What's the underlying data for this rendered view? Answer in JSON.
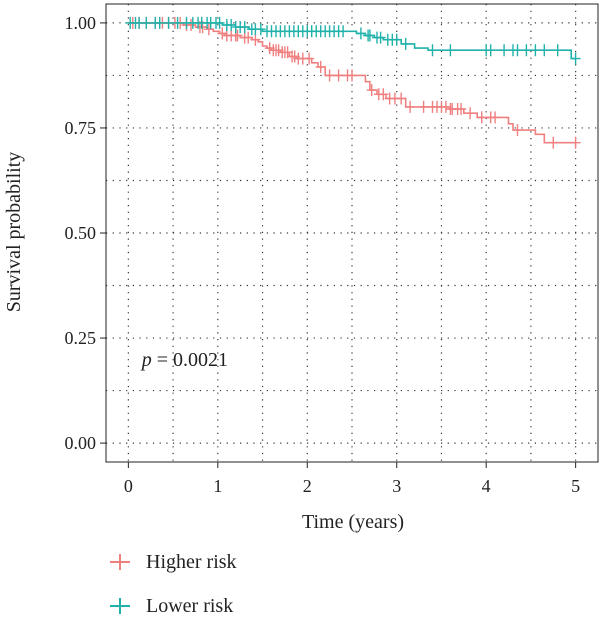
{
  "chart_data": {
    "type": "line",
    "xlabel": "Time (years)",
    "ylabel": "Survival probability",
    "xlim": [
      -0.25,
      5.25
    ],
    "ylim": [
      -0.045,
      1.045
    ],
    "x_ticks": [
      0,
      1,
      2,
      3,
      4,
      5
    ],
    "y_ticks": [
      0.0,
      0.25,
      0.5,
      0.75,
      1.0
    ],
    "x_tick_labels": [
      "0",
      "1",
      "2",
      "3",
      "4",
      "5"
    ],
    "y_tick_labels": [
      "0.00",
      "0.25",
      "0.50",
      "0.75",
      "1.00"
    ],
    "grid": "dotted",
    "legend_position": "bottom",
    "annotation": {
      "prefix": "p",
      "text": " = 0.0021",
      "x": 0.15,
      "y": 0.2
    },
    "series": [
      {
        "name": "Higher risk",
        "color": "#F08080",
        "steps": [
          [
            0,
            1.0
          ],
          [
            0.62,
            0.995
          ],
          [
            0.75,
            0.99
          ],
          [
            0.88,
            0.985
          ],
          [
            0.95,
            0.98
          ],
          [
            1.02,
            0.975
          ],
          [
            1.08,
            0.97
          ],
          [
            1.25,
            0.965
          ],
          [
            1.38,
            0.96
          ],
          [
            1.45,
            0.955
          ],
          [
            1.5,
            0.945
          ],
          [
            1.55,
            0.94
          ],
          [
            1.6,
            0.935
          ],
          [
            1.7,
            0.93
          ],
          [
            1.8,
            0.92
          ],
          [
            1.88,
            0.915
          ],
          [
            2.05,
            0.905
          ],
          [
            2.12,
            0.895
          ],
          [
            2.2,
            0.875
          ],
          [
            2.65,
            0.86
          ],
          [
            2.7,
            0.84
          ],
          [
            2.78,
            0.83
          ],
          [
            2.88,
            0.82
          ],
          [
            3.1,
            0.8
          ],
          [
            3.6,
            0.795
          ],
          [
            3.75,
            0.785
          ],
          [
            3.9,
            0.775
          ],
          [
            4.25,
            0.76
          ],
          [
            4.3,
            0.745
          ],
          [
            4.55,
            0.735
          ],
          [
            4.65,
            0.715
          ],
          [
            5.0,
            0.715
          ]
        ],
        "censor_x": [
          0.05,
          0.12,
          0.2,
          0.3,
          0.38,
          0.45,
          0.52,
          0.58,
          0.65,
          0.7,
          0.8,
          0.83,
          0.9,
          1.05,
          1.1,
          1.15,
          1.2,
          1.22,
          1.3,
          1.34,
          1.42,
          1.58,
          1.62,
          1.65,
          1.68,
          1.72,
          1.75,
          1.78,
          1.83,
          1.86,
          1.9,
          1.95,
          2.02,
          2.15,
          2.25,
          2.35,
          2.45,
          2.5,
          2.72,
          2.8,
          2.85,
          2.92,
          2.98,
          3.05,
          3.15,
          3.3,
          3.4,
          3.45,
          3.5,
          3.55,
          3.6,
          3.62,
          3.68,
          3.72,
          3.82,
          3.95,
          4.05,
          4.1,
          4.35,
          4.75,
          5.0
        ]
      },
      {
        "name": "Lower risk",
        "color": "#20B2AA",
        "steps": [
          [
            0,
            1.0
          ],
          [
            1.05,
            0.995
          ],
          [
            1.2,
            0.99
          ],
          [
            1.35,
            0.985
          ],
          [
            1.5,
            0.98
          ],
          [
            2.55,
            0.975
          ],
          [
            2.65,
            0.97
          ],
          [
            2.75,
            0.965
          ],
          [
            2.85,
            0.96
          ],
          [
            3.05,
            0.95
          ],
          [
            3.2,
            0.94
          ],
          [
            3.35,
            0.935
          ],
          [
            4.95,
            0.915
          ],
          [
            5.0,
            0.915
          ]
        ],
        "censor_x": [
          0.02,
          0.08,
          0.12,
          0.2,
          0.3,
          0.35,
          0.45,
          0.55,
          0.65,
          0.72,
          0.78,
          0.82,
          0.88,
          0.92,
          0.98,
          1.02,
          1.1,
          1.15,
          1.2,
          1.25,
          1.3,
          1.38,
          1.42,
          1.48,
          1.55,
          1.6,
          1.65,
          1.7,
          1.75,
          1.8,
          1.85,
          1.9,
          1.95,
          2.0,
          2.05,
          2.1,
          2.15,
          2.2,
          2.25,
          2.3,
          2.35,
          2.4,
          2.6,
          2.68,
          2.7,
          2.78,
          2.82,
          2.9,
          2.95,
          3.0,
          3.1,
          3.4,
          3.6,
          4.0,
          4.05,
          4.2,
          4.3,
          4.35,
          4.45,
          4.55,
          4.65,
          4.8,
          5.0
        ]
      }
    ]
  }
}
